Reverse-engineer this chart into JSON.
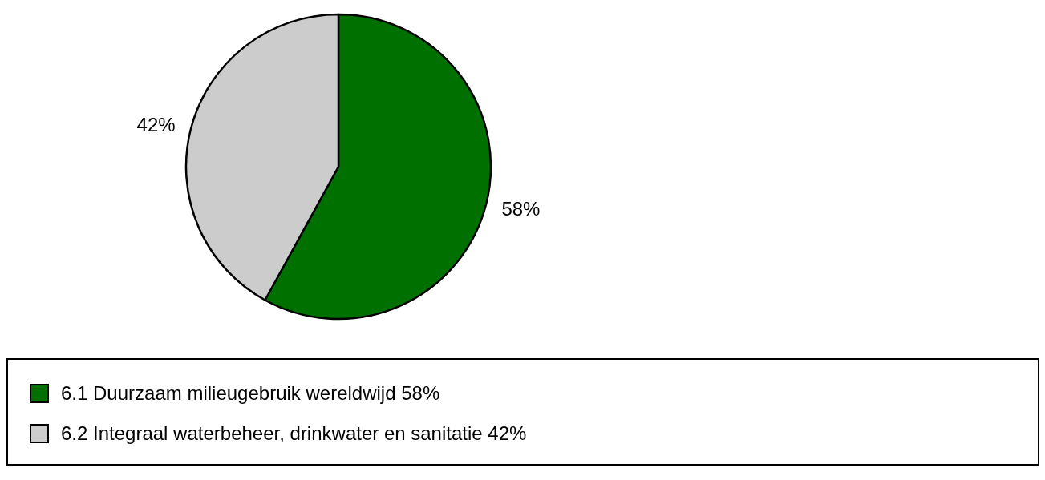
{
  "chart_data": {
    "type": "pie",
    "categories": [
      "6.1 Duurzaam milieugebruik wereldwijd 58%",
      "6.2 Integraal waterbeheer, drinkwater en sanitatie 42%"
    ],
    "values": [
      58,
      42
    ],
    "colors": [
      "#007000",
      "#cccccc"
    ],
    "value_labels": [
      "58%",
      "42%"
    ],
    "legend": "bottom"
  }
}
